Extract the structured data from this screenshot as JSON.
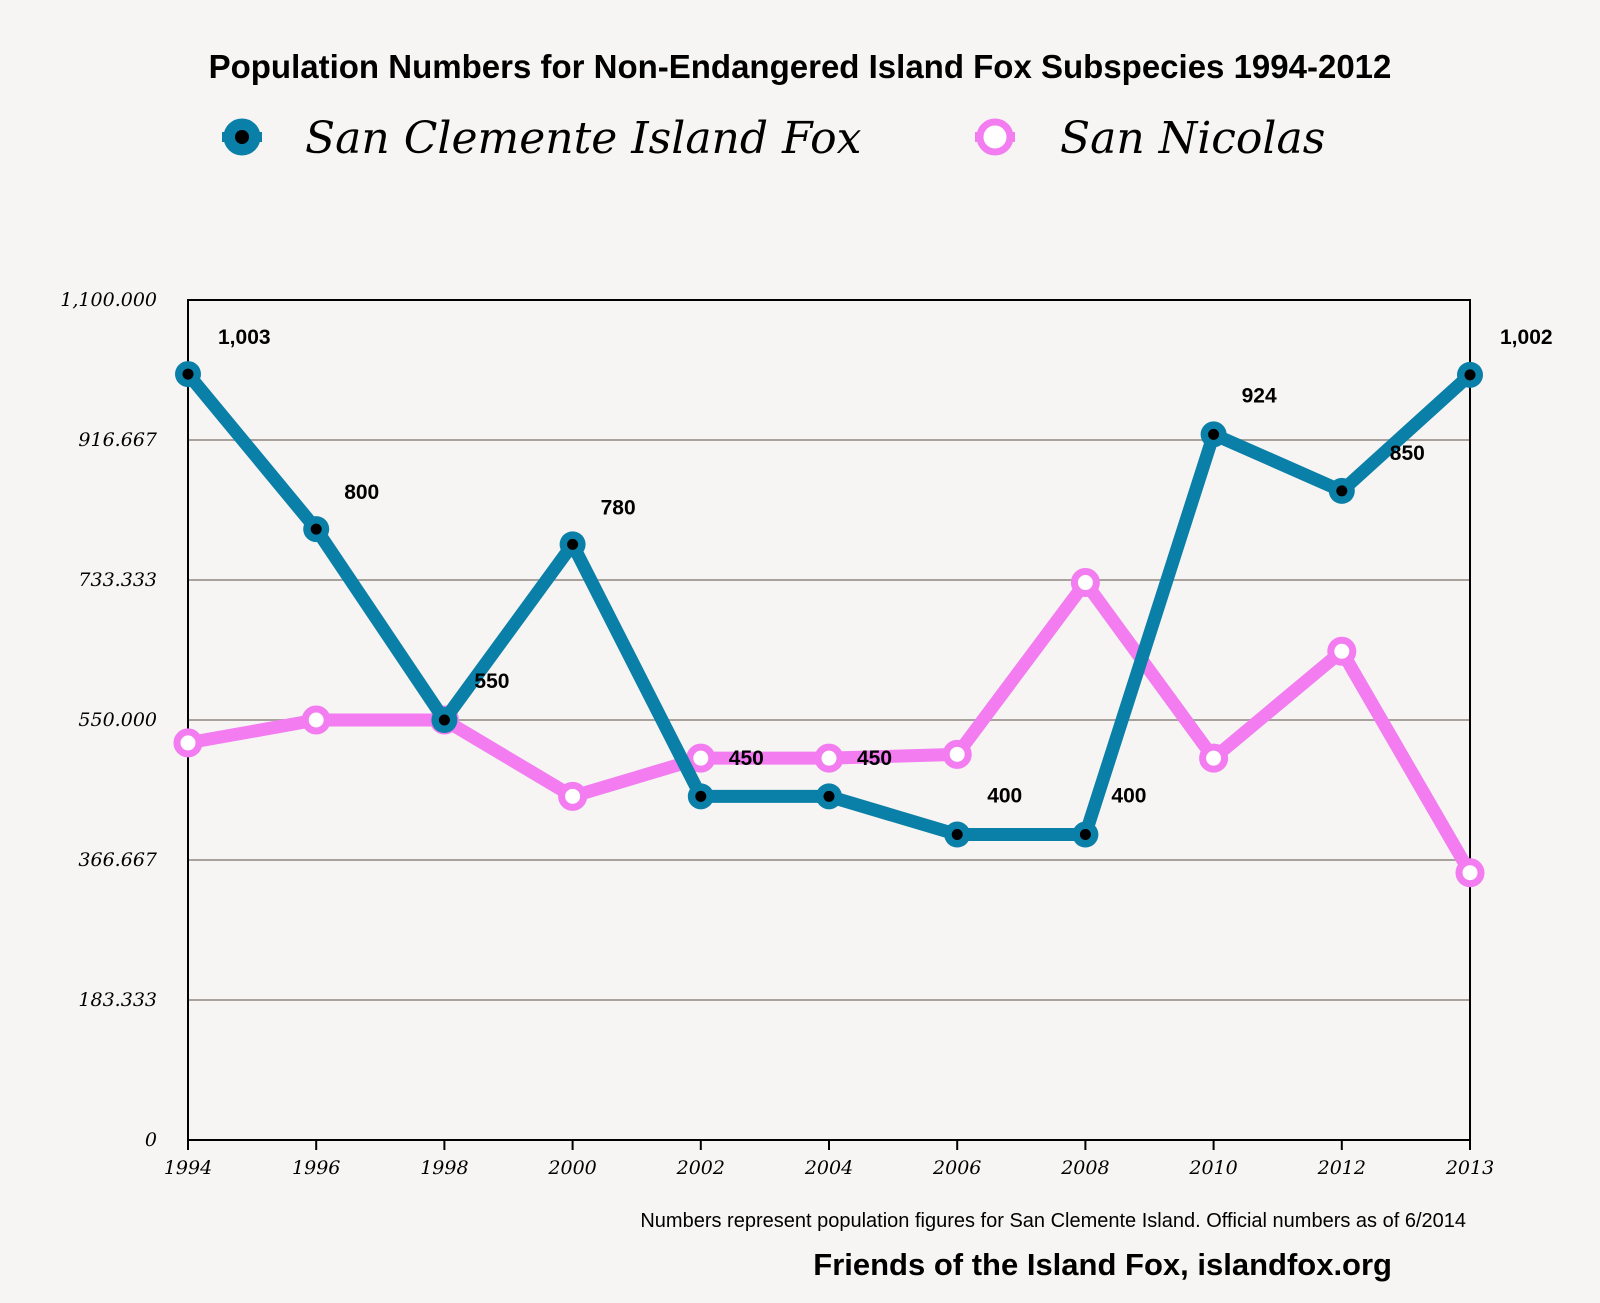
{
  "chart_data": {
    "type": "line",
    "title": "Population Numbers for Non-Endangered Island Fox Subspecies 1994-2012",
    "categories": [
      "1994",
      "1996",
      "1998",
      "2000",
      "2002",
      "2004",
      "2006",
      "2008",
      "2010",
      "2012",
      "2013"
    ],
    "ylim": [
      0,
      1100
    ],
    "y_ticks": [
      0,
      183.333,
      366.667,
      550,
      733.333,
      916.667,
      1100
    ],
    "y_tick_labels": [
      "0",
      "183.333",
      "366.667",
      "550.000",
      "733.333",
      "916.667",
      "1,100.000"
    ],
    "grid": true,
    "legend_position": "top",
    "series": [
      {
        "name": "San Clemente Island Fox",
        "color": "#0a7fa8",
        "marker": "filled",
        "values": [
          1003,
          800,
          550,
          780,
          450,
          450,
          400,
          400,
          924,
          850,
          1002
        ],
        "labels": [
          "1,003",
          "800",
          "550",
          "780",
          "450",
          "450",
          "400",
          "400",
          "924",
          "850",
          "1,002"
        ]
      },
      {
        "name": "San Nicolas",
        "color": "#f27cf0",
        "marker": "hollow",
        "values": [
          520,
          550,
          550,
          450,
          500,
          500,
          505,
          730,
          500,
          640,
          350
        ],
        "labels": []
      }
    ],
    "note": "Numbers represent population figures for San Clemente Island. Official numbers as of 6/2014",
    "credit": "Friends of the Island Fox, islandfox.org"
  }
}
